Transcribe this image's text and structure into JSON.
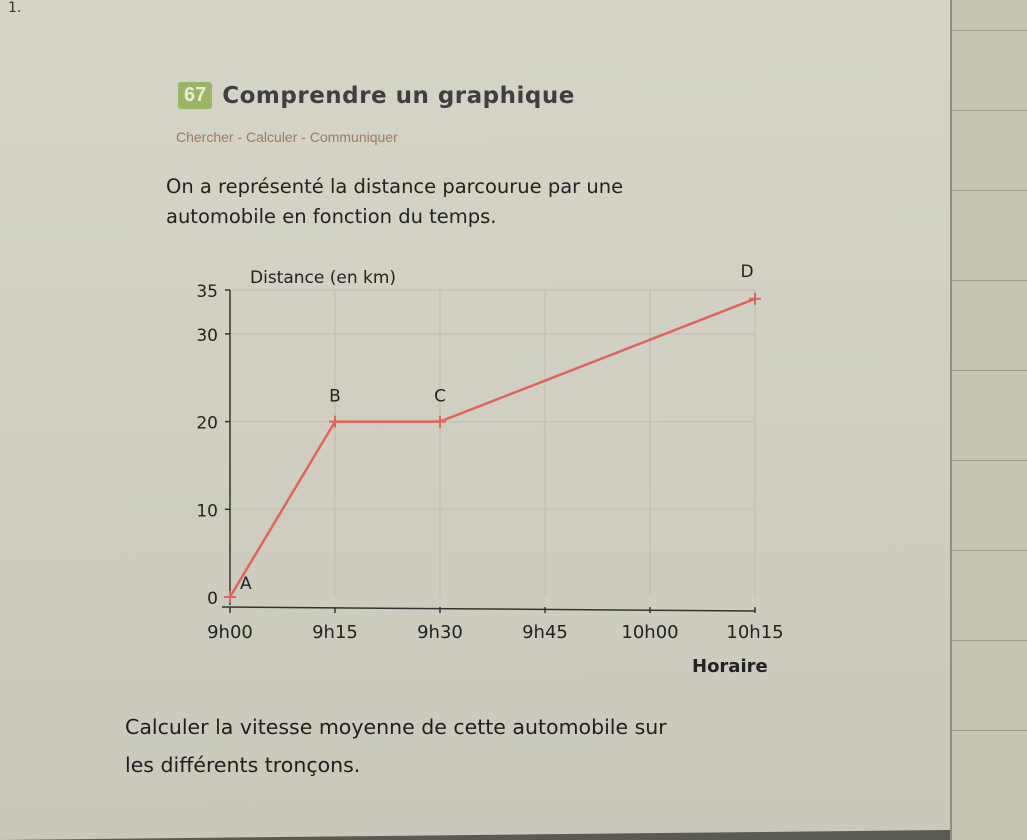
{
  "corner_mark": "1.",
  "exercise": {
    "number": "67",
    "title": "Comprendre un graphique",
    "skills": "Chercher - Calculer - Communiquer",
    "intro_line1": "On a représenté la distance parcourue par une",
    "intro_line2": "automobile en fonction du temps.",
    "question_line1": "Calculer la vitesse moyenne de cette automobile sur",
    "question_line2": "les différents tronçons."
  },
  "chart_data": {
    "type": "line",
    "ylabel": "Distance (en km)",
    "xlabel": "Horaire",
    "x_ticks": [
      "9h00",
      "9h15",
      "9h30",
      "9h45",
      "10h00",
      "10h15"
    ],
    "y_ticks": [
      0,
      10,
      20,
      30,
      35
    ],
    "ylim": [
      0,
      35
    ],
    "xlim_minutes_from_9h00": [
      0,
      75
    ],
    "grid": true,
    "series": [
      {
        "points": [
          {
            "label": "A",
            "x": "9h00",
            "y": 0
          },
          {
            "label": "B",
            "x": "9h15",
            "y": 20
          },
          {
            "label": "C",
            "x": "9h30",
            "y": 20
          },
          {
            "label": "D",
            "x": "10h15",
            "y": 34
          }
        ],
        "color": "#e0645c"
      }
    ]
  }
}
